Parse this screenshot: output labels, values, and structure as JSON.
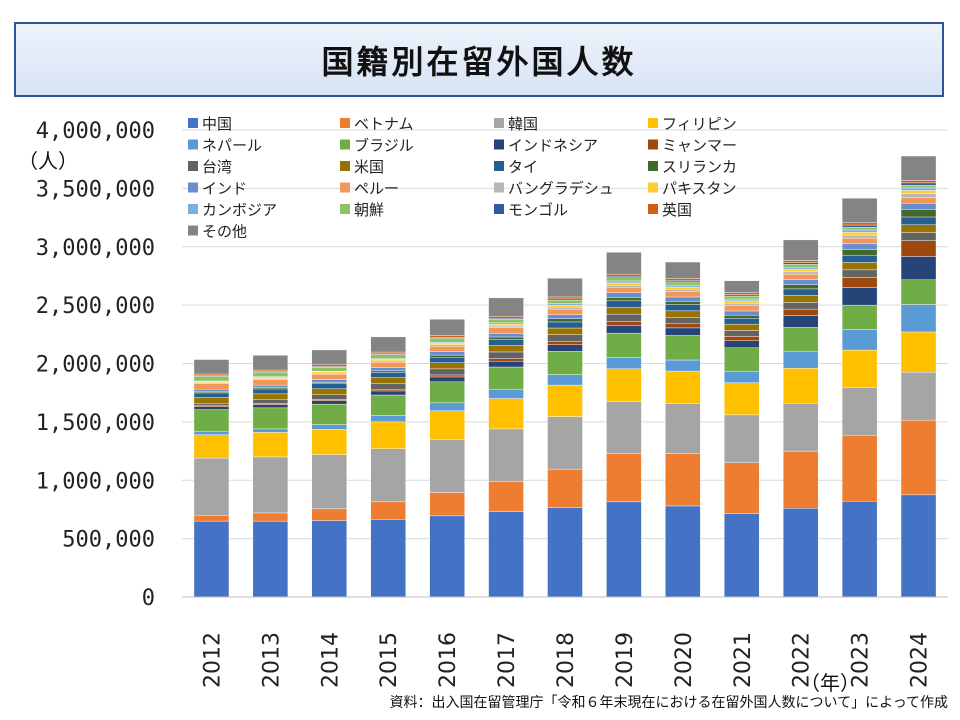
{
  "title": "国籍別在留外国人数",
  "ylabel": "（人）",
  "xlabel": "（年）",
  "source": "資料：出入国在留管理庁「令和６年末現在における在留外国人数について」によって作成",
  "chart_data": {
    "type": "bar",
    "stacked": true,
    "title": "国籍別在留外国人数",
    "xlabel": "（年）",
    "ylabel": "（人）",
    "ylim": [
      0,
      4000000
    ],
    "yticks": [
      0,
      500000,
      1000000,
      1500000,
      2000000,
      2500000,
      3000000,
      3500000,
      4000000
    ],
    "ytick_labels": [
      "0",
      "500,000",
      "1,000,000",
      "1,500,000",
      "2,000,000",
      "2,500,000",
      "3,000,000",
      "3,500,000",
      "4,000,000"
    ],
    "grid": true,
    "legend_position": "top-left",
    "categories": [
      "2012",
      "2013",
      "2014",
      "2015",
      "2016",
      "2017",
      "2018",
      "2019",
      "2020",
      "2021",
      "2022",
      "2023",
      "2024"
    ],
    "series": [
      {
        "name": "中国",
        "color": "#4472c4",
        "values": [
          650000,
          650000,
          655000,
          665000,
          695000,
          730000,
          765000,
          815000,
          780000,
          715000,
          760000,
          820000,
          875000
        ]
      },
      {
        "name": "ベトナム",
        "color": "#ed7d31",
        "values": [
          50000,
          70000,
          100000,
          150000,
          200000,
          260000,
          330000,
          415000,
          450000,
          435000,
          490000,
          565000,
          640000
        ]
      },
      {
        "name": "韓国",
        "color": "#a5a5a5",
        "values": [
          490000,
          480000,
          465000,
          455000,
          455000,
          450000,
          450000,
          445000,
          425000,
          410000,
          410000,
          410000,
          410000
        ]
      },
      {
        "name": "フィリピン",
        "color": "#ffc000",
        "values": [
          200000,
          210000,
          215000,
          230000,
          245000,
          260000,
          270000,
          280000,
          280000,
          275000,
          300000,
          320000,
          345000
        ]
      },
      {
        "name": "ネパール",
        "color": "#5b9bd5",
        "values": [
          25000,
          30000,
          42000,
          55000,
          68000,
          80000,
          90000,
          95000,
          95000,
          95000,
          140000,
          175000,
          235000
        ]
      },
      {
        "name": "ブラジル",
        "color": "#70ad47",
        "values": [
          190000,
          180000,
          175000,
          175000,
          180000,
          190000,
          200000,
          210000,
          210000,
          205000,
          210000,
          210000,
          212000
        ]
      },
      {
        "name": "インドネシア",
        "color": "#264478",
        "values": [
          25000,
          28000,
          30000,
          35000,
          42000,
          50000,
          56000,
          66000,
          65000,
          60000,
          100000,
          150000,
          200000
        ]
      },
      {
        "name": "ミャンマー",
        "color": "#9e480e",
        "values": [
          8000,
          9000,
          10000,
          14000,
          17000,
          22000,
          26000,
          33000,
          35000,
          37000,
          56000,
          87000,
          135000
        ]
      },
      {
        "name": "台湾",
        "color": "#636363",
        "values": [
          22000,
          33000,
          40000,
          48000,
          52000,
          57000,
          60000,
          64000,
          55000,
          51000,
          57000,
          65000,
          70000
        ]
      },
      {
        "name": "米国",
        "color": "#997300",
        "values": [
          48000,
          50000,
          51000,
          52000,
          53000,
          55000,
          57000,
          59000,
          56000,
          54000,
          60000,
          63000,
          66000
        ]
      },
      {
        "name": "タイ",
        "color": "#255e91",
        "values": [
          40000,
          42000,
          43000,
          45000,
          47000,
          50000,
          52000,
          55000,
          53000,
          50000,
          56000,
          62000,
          67000
        ]
      },
      {
        "name": "スリランカ",
        "color": "#43682b",
        "values": [
          9000,
          10000,
          11000,
          13000,
          18000,
          23000,
          27000,
          29000,
          28000,
          27000,
          35000,
          50000,
          65000
        ]
      },
      {
        "name": "インド",
        "color": "#698ed0",
        "values": [
          22000,
          23000,
          25000,
          27000,
          29000,
          31000,
          35000,
          40000,
          38000,
          36000,
          43000,
          48000,
          53000
        ]
      },
      {
        "name": "ペルー",
        "color": "#f1975a",
        "values": [
          49000,
          48000,
          47000,
          47000,
          47000,
          48000,
          48000,
          48000,
          48000,
          48000,
          48000,
          49000,
          49000
        ]
      },
      {
        "name": "バングラデシュ",
        "color": "#b7b7b7",
        "values": [
          9000,
          9000,
          9000,
          11000,
          13000,
          15000,
          16000,
          17000,
          18000,
          18000,
          20000,
          26000,
          33000
        ]
      },
      {
        "name": "パキスタン",
        "color": "#ffcd33",
        "values": [
          10000,
          11000,
          11000,
          13000,
          14000,
          16000,
          17000,
          19000,
          19000,
          20000,
          22000,
          24000,
          27000
        ]
      },
      {
        "name": "カンボジア",
        "color": "#7cafdd",
        "values": [
          3000,
          3000,
          4000,
          6000,
          8000,
          11000,
          14000,
          17000,
          17000,
          16000,
          17000,
          20000,
          22000
        ]
      },
      {
        "name": "朝鮮",
        "color": "#8cc168",
        "values": [
          40000,
          38000,
          35000,
          34000,
          32000,
          31000,
          29000,
          28000,
          27000,
          26000,
          25000,
          24000,
          23000
        ]
      },
      {
        "name": "モンゴル",
        "color": "#335aa1",
        "values": [
          5000,
          5000,
          6000,
          7000,
          8000,
          9000,
          11000,
          12000,
          13000,
          12000,
          15000,
          18000,
          20000
        ]
      },
      {
        "name": "英国",
        "color": "#d26012",
        "values": [
          15000,
          15000,
          15000,
          16000,
          16000,
          17000,
          17000,
          18000,
          17000,
          16000,
          18000,
          19000,
          20000
        ]
      },
      {
        "name": "その他",
        "color": "#848484",
        "values": [
          124000,
          126000,
          127000,
          130000,
          140000,
          157000,
          160000,
          188000,
          140000,
          103000,
          177000,
          211000,
          210000
        ]
      }
    ]
  }
}
